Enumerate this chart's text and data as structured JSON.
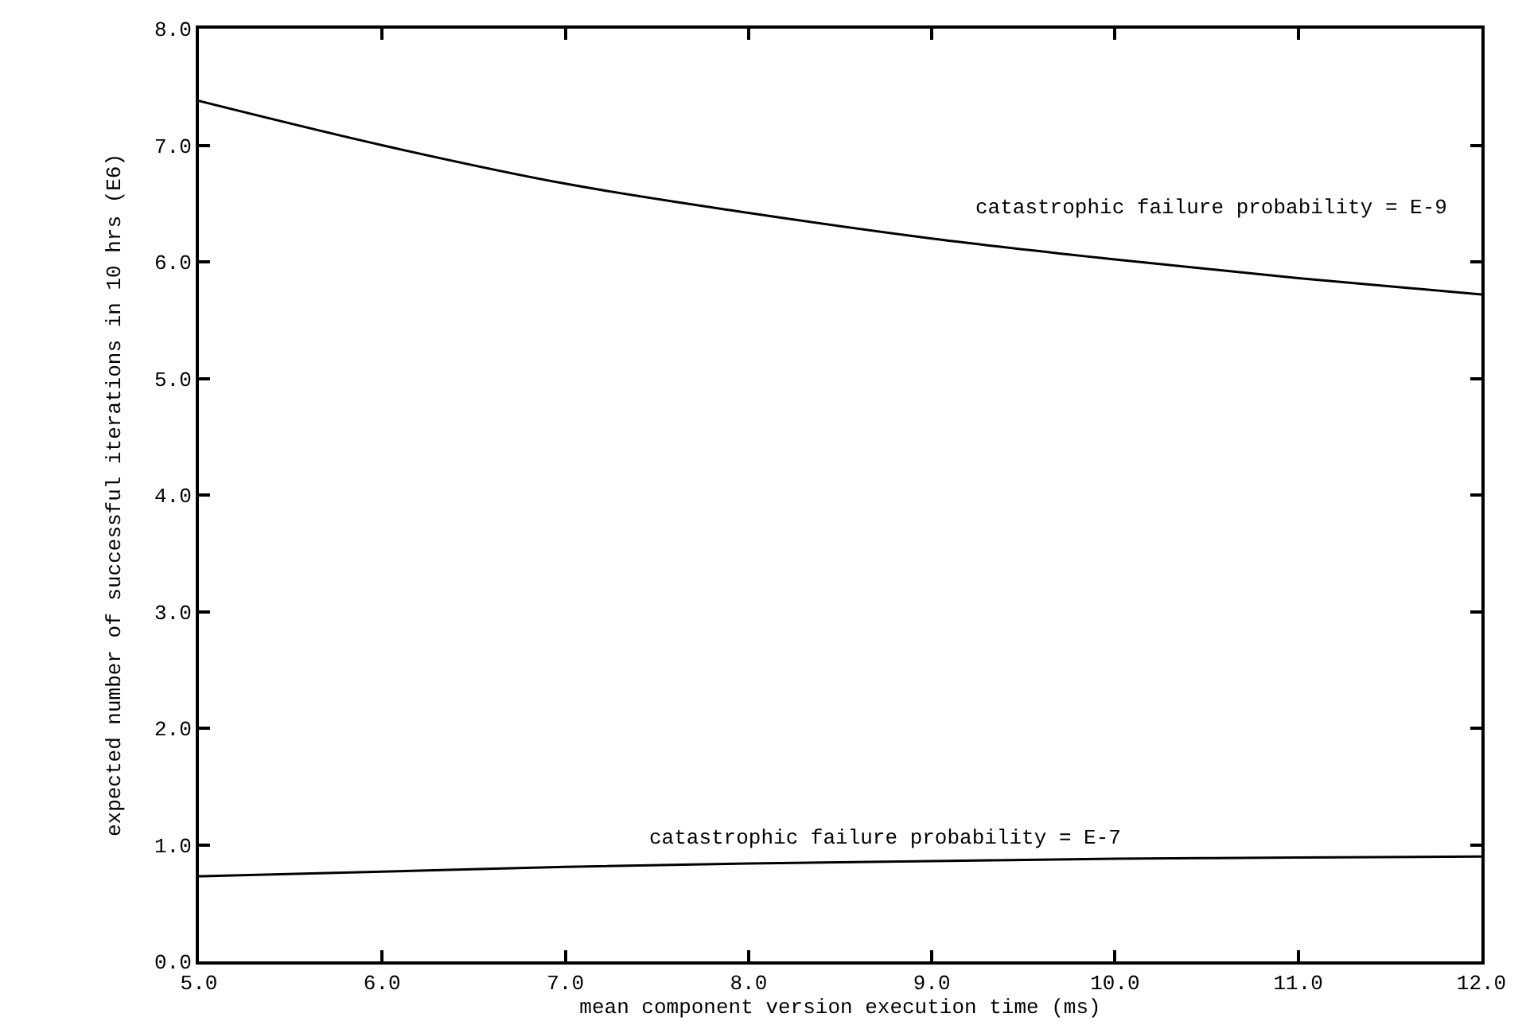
{
  "chart_data": {
    "type": "line",
    "xlabel": "mean component version execution time (ms)",
    "ylabel": "expected number of successful iterations in 10 hrs (E6)",
    "x": [
      5,
      6,
      7,
      8,
      9,
      10,
      11,
      12
    ],
    "series": [
      {
        "name": "catastrophic failure probability = E-9",
        "color": "#000000",
        "values": [
          7.38,
          7.0,
          6.67,
          6.42,
          6.2,
          6.02,
          5.86,
          5.72
        ]
      },
      {
        "name": "catastrophic failure probability = E-7",
        "color": "#000000",
        "values": [
          0.73,
          0.77,
          0.81,
          0.84,
          0.86,
          0.88,
          0.89,
          0.9
        ]
      }
    ],
    "xlim": [
      5,
      12
    ],
    "xticks": [
      {
        "value": 5,
        "label": "5.0"
      },
      {
        "value": 6,
        "label": "6.0"
      },
      {
        "value": 7,
        "label": "7.0"
      },
      {
        "value": 8,
        "label": "8.0"
      },
      {
        "value": 9,
        "label": "9.0"
      },
      {
        "value": 10,
        "label": "10.0"
      },
      {
        "value": 11,
        "label": "11.0"
      },
      {
        "value": 12,
        "label": "12.0"
      }
    ],
    "ylim": [
      0,
      8
    ],
    "yticks": [
      {
        "value": 0,
        "label": "0.0"
      },
      {
        "value": 1,
        "label": "1.0"
      },
      {
        "value": 2,
        "label": "2.0"
      },
      {
        "value": 3,
        "label": "3.0"
      },
      {
        "value": 4,
        "label": "4.0"
      },
      {
        "value": 5,
        "label": "5.0"
      },
      {
        "value": 6,
        "label": "6.0"
      },
      {
        "value": 7,
        "label": "7.0"
      },
      {
        "value": 8,
        "label": "8.0"
      }
    ],
    "grid": false,
    "legend": false,
    "marker": "none",
    "line_style": "solid"
  }
}
